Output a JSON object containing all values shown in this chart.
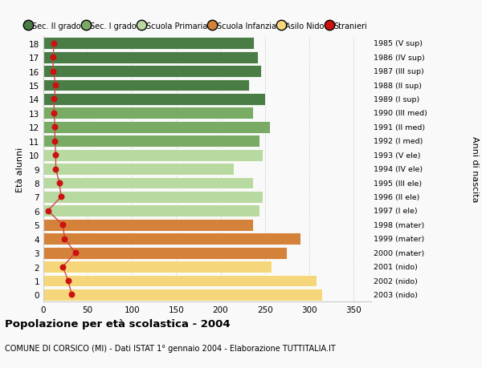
{
  "ages": [
    18,
    17,
    16,
    15,
    14,
    13,
    12,
    11,
    10,
    9,
    8,
    7,
    6,
    5,
    4,
    3,
    2,
    1,
    0
  ],
  "bar_values": [
    238,
    242,
    246,
    232,
    250,
    237,
    256,
    244,
    248,
    215,
    237,
    248,
    244,
    237,
    290,
    275,
    258,
    308,
    315
  ],
  "stranieri": [
    12,
    11,
    11,
    14,
    12,
    12,
    13,
    13,
    14,
    14,
    18,
    20,
    5,
    22,
    24,
    36,
    22,
    28,
    32
  ],
  "right_labels": [
    "1985 (V sup)",
    "1986 (IV sup)",
    "1987 (III sup)",
    "1988 (II sup)",
    "1989 (I sup)",
    "1990 (III med)",
    "1991 (II med)",
    "1992 (I med)",
    "1993 (V ele)",
    "1994 (IV ele)",
    "1995 (III ele)",
    "1996 (II ele)",
    "1997 (I ele)",
    "1998 (mater)",
    "1999 (mater)",
    "2000 (mater)",
    "2001 (nido)",
    "2002 (nido)",
    "2003 (nido)"
  ],
  "bar_colors": {
    "sec2": "#4a7c45",
    "sec1": "#7aab65",
    "primaria": "#b8d9a0",
    "infanzia": "#d4813a",
    "nido": "#f5d67a"
  },
  "age_groups": {
    "sec2": [
      14,
      15,
      16,
      17,
      18
    ],
    "sec1": [
      11,
      12,
      13
    ],
    "primaria": [
      6,
      7,
      8,
      9,
      10
    ],
    "infanzia": [
      3,
      4,
      5
    ],
    "nido": [
      0,
      1,
      2
    ]
  },
  "legend_labels": [
    "Sec. II grado",
    "Sec. I grado",
    "Scuola Primaria",
    "Scuola Infanzia",
    "Asilo Nido",
    "Stranieri"
  ],
  "legend_colors": [
    "#4a7c45",
    "#7aab65",
    "#b8d9a0",
    "#d4813a",
    "#f5d67a",
    "#cc1111"
  ],
  "ylabel": "Età alunni",
  "right_ylabel": "Anni di nascita",
  "title": "Popolazione per età scolastica - 2004",
  "subtitle": "COMUNE DI CORSICO (MI) - Dati ISTAT 1° gennaio 2004 - Elaborazione TUTTITALIA.IT",
  "xlim": [
    0,
    370
  ],
  "xticks": [
    0,
    50,
    100,
    150,
    200,
    250,
    300,
    350
  ],
  "bar_height": 0.85,
  "bg_color": "#f9f9f9",
  "grid_color": "#cccccc",
  "stranieri_dot_color": "#cc1111",
  "stranieri_line_color": "#cc4444"
}
